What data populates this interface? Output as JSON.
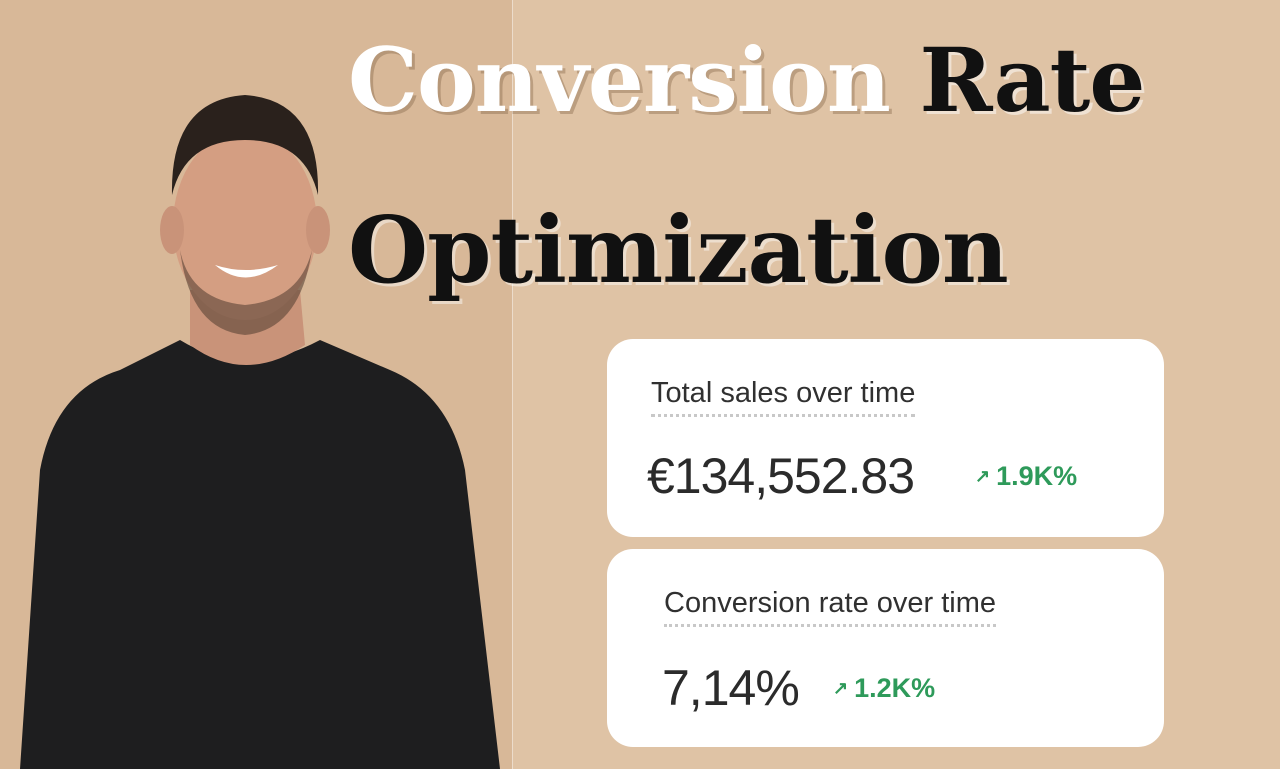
{
  "title": {
    "line1_white": "Conversion",
    "line1_black": "Rate",
    "line2": "Optimization"
  },
  "cards": [
    {
      "label": "Total sales over time",
      "value": "€134,552.83",
      "change": "1.9K%",
      "change_icon": "arrow-up-right-icon"
    },
    {
      "label": "Conversion rate over time",
      "value": "7,14%",
      "change": "1.2K%",
      "change_icon": "arrow-up-right-icon"
    }
  ],
  "colors": {
    "background": "#dfc3a5",
    "positive": "#2e9a5a",
    "card": "#ffffff",
    "text": "#2b2b2b"
  }
}
